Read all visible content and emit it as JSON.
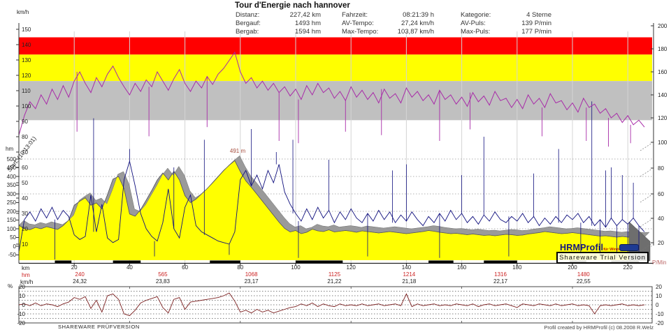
{
  "header": {
    "title": "Tour d'Energie nach hannover",
    "stats": [
      {
        "label": "Distanz:",
        "value": "227,42 km"
      },
      {
        "label": "Fahrzeit:",
        "value": "08:21:39 h"
      },
      {
        "label": "Kategorie:",
        "value": "4 Sterne"
      },
      {
        "label": "Bergauf:",
        "value": "1493 hm"
      },
      {
        "label": "AV-Tempo:",
        "value": "27,24 km/h"
      },
      {
        "label": "AV-Puls:",
        "value": "139 P/min"
      },
      {
        "label": "Bergab:",
        "value": "1594 hm"
      },
      {
        "label": "Max-Tempo:",
        "value": "103,87 km/h"
      },
      {
        "label": "Max-Puls:",
        "value": "177 P/min"
      }
    ]
  },
  "annotations": {
    "start_label": "Start: (10:13:01)",
    "peak_label": "491 m"
  },
  "bottom_rows": {
    "row_labels": [
      "km",
      "hm",
      "km/h"
    ],
    "markers": [
      {
        "km": 22,
        "hm": "240",
        "kmh": "24,32"
      },
      {
        "km": 52,
        "hm": "565",
        "kmh": "23,83"
      },
      {
        "km": 84,
        "hm": "1068",
        "kmh": "23,17"
      },
      {
        "km": 114,
        "hm": "1125",
        "kmh": "21,22"
      },
      {
        "km": 141,
        "hm": "1214",
        "kmh": "21,18"
      },
      {
        "km": 174,
        "hm": "1316",
        "kmh": "22,17"
      },
      {
        "km": 204,
        "hm": "1480",
        "kmh": "22,55"
      }
    ]
  },
  "watermarks": {
    "logo_text": "HRMProfil",
    "logo_sub": "für Windows",
    "trial": "Shareware Trial Version",
    "bottom_left": "SHAREWARE PRÜFVERSION",
    "bottom_right": "Profil created by HRMProfil (c) 08.2008 R.Welz"
  },
  "colors": {
    "zone_red": "#ff0000",
    "zone_yellow": "#ffff00",
    "zone_gray": "#c0c0c0",
    "elevation_fill": "#ffff00",
    "ridge_gray": "#9a9a9a",
    "speed_line": "#10107e",
    "pulse_line": "#a82ba8",
    "gradient_line": "#7b1f1f",
    "hm_text_red": "#cc2222"
  },
  "chart_data": [
    {
      "type": "area+line",
      "name": "main-profile",
      "x_unit": "km",
      "x_range": [
        0,
        227
      ],
      "x_step_km": 2,
      "axis": {
        "speed": {
          "title": "km/h",
          "min": 0,
          "max": 150,
          "ticks": [
            150,
            140,
            130,
            120,
            110,
            100,
            90,
            80,
            70,
            60,
            50,
            40,
            30,
            20,
            10
          ]
        },
        "elevation": {
          "title": "hm",
          "min": -50,
          "max": 500,
          "ticks": [
            500,
            450,
            400,
            350,
            300,
            250,
            200,
            150,
            100,
            50,
            0,
            -50
          ]
        },
        "pulse": {
          "title": "P/Min",
          "min": 20,
          "max": 200,
          "ticks": [
            200,
            180,
            160,
            140,
            120,
            100,
            80,
            60,
            40,
            20
          ]
        },
        "distance": {
          "title": "km",
          "ticks": [
            20,
            40,
            60,
            80,
            100,
            120,
            140,
            160,
            180,
            200,
            220
          ]
        }
      },
      "zones_pmin": [
        {
          "name": "red",
          "from": 175,
          "to": 190,
          "color": "#ff0000"
        },
        {
          "name": "yellow",
          "from": 152,
          "to": 175,
          "color": "#ffff00"
        },
        {
          "name": "gray",
          "from": 118,
          "to": 152,
          "color": "#c0c0c0"
        }
      ],
      "elevation_hm": [
        120,
        100,
        95,
        108,
        100,
        112,
        104,
        96,
        118,
        150,
        235,
        258,
        278,
        235,
        248,
        215,
        295,
        385,
        400,
        330,
        185,
        172,
        210,
        265,
        320,
        380,
        420,
        380,
        430,
        380,
        290,
        250,
        270,
        300,
        330,
        365,
        400,
        435,
        465,
        491,
        428,
        375,
        338,
        298,
        258,
        218,
        178,
        138,
        102,
        82,
        90,
        72,
        80,
        98,
        88,
        84,
        94,
        82,
        86,
        90,
        86,
        80,
        88,
        84,
        80,
        76,
        80,
        84,
        80,
        76,
        72,
        76,
        80,
        84,
        90,
        86,
        80,
        76,
        72,
        74,
        70,
        66,
        70,
        66,
        62,
        64,
        60,
        64,
        68,
        66,
        62,
        64,
        70,
        74,
        78,
        84,
        80,
        76,
        72,
        74,
        78,
        74,
        70,
        66,
        62,
        58,
        60,
        56,
        52,
        56,
        52,
        54,
        50,
        52
      ],
      "elevation_peak": {
        "km": 78,
        "hm": 491
      },
      "speed_kmh": [
        5,
        26,
        31,
        25,
        33,
        27,
        34,
        26,
        32,
        28,
        16,
        13,
        15,
        42,
        18,
        36,
        14,
        11,
        13,
        52,
        64,
        48,
        30,
        20,
        15,
        12,
        24,
        46,
        20,
        14,
        34,
        42,
        22,
        18,
        16,
        14,
        12,
        11,
        10,
        18,
        52,
        58,
        48,
        55,
        46,
        58,
        50,
        62,
        44,
        36,
        30,
        25,
        33,
        26,
        34,
        27,
        32,
        24,
        31,
        26,
        33,
        27,
        24,
        30,
        25,
        32,
        26,
        31,
        24,
        29,
        25,
        31,
        26,
        22,
        28,
        24,
        30,
        25,
        32,
        26,
        30,
        24,
        28,
        23,
        29,
        25,
        31,
        26,
        24,
        28,
        25,
        30,
        24,
        28,
        22,
        27,
        23,
        28,
        24,
        29,
        26,
        30,
        24,
        28,
        22,
        26,
        21,
        27,
        22,
        26,
        23,
        27,
        22,
        18
      ],
      "speed_spikes_kmh": [
        [
          13,
          0
        ],
        [
          27,
          92
        ],
        [
          40,
          72
        ],
        [
          49,
          2
        ],
        [
          56,
          60
        ],
        [
          67,
          78
        ],
        [
          76,
          3
        ],
        [
          84,
          85
        ],
        [
          93,
          70
        ],
        [
          99,
          78
        ],
        [
          101,
          1
        ],
        [
          112,
          65
        ],
        [
          126,
          2
        ],
        [
          135,
          58
        ],
        [
          140,
          62
        ],
        [
          152,
          1
        ],
        [
          160,
          55
        ],
        [
          168,
          80
        ],
        [
          177,
          2
        ],
        [
          186,
          56
        ],
        [
          195,
          72
        ],
        [
          203,
          3
        ],
        [
          207,
          103
        ],
        [
          210,
          2
        ],
        [
          212,
          58
        ],
        [
          214,
          60
        ],
        [
          216,
          1
        ],
        [
          218,
          55
        ],
        [
          220,
          2
        ],
        [
          222,
          50
        ],
        [
          224,
          1
        ]
      ],
      "pulse_pmin": [
        105,
        122,
        134,
        128,
        140,
        132,
        145,
        136,
        148,
        138,
        152,
        160,
        150,
        142,
        155,
        147,
        158,
        165,
        155,
        147,
        140,
        150,
        143,
        153,
        147,
        160,
        152,
        144,
        154,
        162,
        150,
        143,
        152,
        146,
        156,
        149,
        158,
        163,
        170,
        177,
        160,
        150,
        155,
        146,
        152,
        144,
        150,
        142,
        147,
        139,
        145,
        136,
        148,
        140,
        150,
        142,
        146,
        137,
        143,
        135,
        147,
        138,
        144,
        136,
        142,
        133,
        145,
        137,
        141,
        133,
        146,
        138,
        143,
        135,
        140,
        132,
        144,
        136,
        140,
        132,
        138,
        130,
        142,
        134,
        139,
        131,
        143,
        135,
        137,
        129,
        136,
        128,
        140,
        132,
        137,
        129,
        141,
        133,
        135,
        127,
        133,
        125,
        137,
        129,
        132,
        124,
        128,
        120,
        124,
        116,
        122,
        114,
        118,
        112
      ],
      "pulse_dips_pmin": [
        [
          21,
          108
        ],
        [
          47,
          104
        ],
        [
          68,
          112
        ],
        [
          94,
          100
        ],
        [
          101,
          98
        ],
        [
          118,
          108
        ],
        [
          131,
          105
        ],
        [
          152,
          100
        ],
        [
          163,
          110
        ],
        [
          189,
          104
        ],
        [
          205,
          100
        ],
        [
          213,
          95
        ],
        [
          221,
          98
        ]
      ],
      "segment_bars_km": [
        [
          13,
          19
        ],
        [
          34,
          44
        ],
        [
          69,
          80
        ],
        [
          100,
          117
        ],
        [
          148,
          157
        ],
        [
          168,
          180
        ],
        [
          199,
          205
        ],
        [
          214,
          224
        ]
      ]
    },
    {
      "type": "line",
      "name": "gradient-profile",
      "unit": "%",
      "ticks": [
        20,
        10,
        0,
        -10,
        -20
      ],
      "x_step_km": 2,
      "values_pct": [
        0,
        1,
        -1,
        2,
        -1,
        1,
        0,
        -2,
        1,
        3,
        8,
        6,
        9,
        -4,
        5,
        -8,
        10,
        12,
        6,
        -10,
        -12,
        -6,
        2,
        5,
        7,
        9,
        -3,
        -9,
        6,
        8,
        -5,
        3,
        4,
        5,
        6,
        7,
        8,
        10,
        13,
        4,
        -8,
        -6,
        -9,
        -5,
        -8,
        -6,
        -9,
        -7,
        -5,
        -3,
        -2,
        1,
        -1,
        2,
        -2,
        1,
        -1,
        -2,
        1,
        -1,
        0,
        -1,
        1,
        -1,
        0,
        1,
        -1,
        0,
        1,
        -1,
        12,
        -2,
        1,
        -1,
        0,
        1,
        -1,
        0,
        -1,
        1,
        0,
        -1,
        1,
        -2,
        0,
        1,
        -1,
        0,
        1,
        -1,
        -3,
        1,
        0,
        -1,
        1,
        0,
        -1,
        1,
        -1,
        0,
        1,
        -1,
        0,
        -1,
        -10,
        -1,
        0,
        -1,
        0,
        1,
        -1,
        0,
        -1,
        0
      ]
    }
  ]
}
